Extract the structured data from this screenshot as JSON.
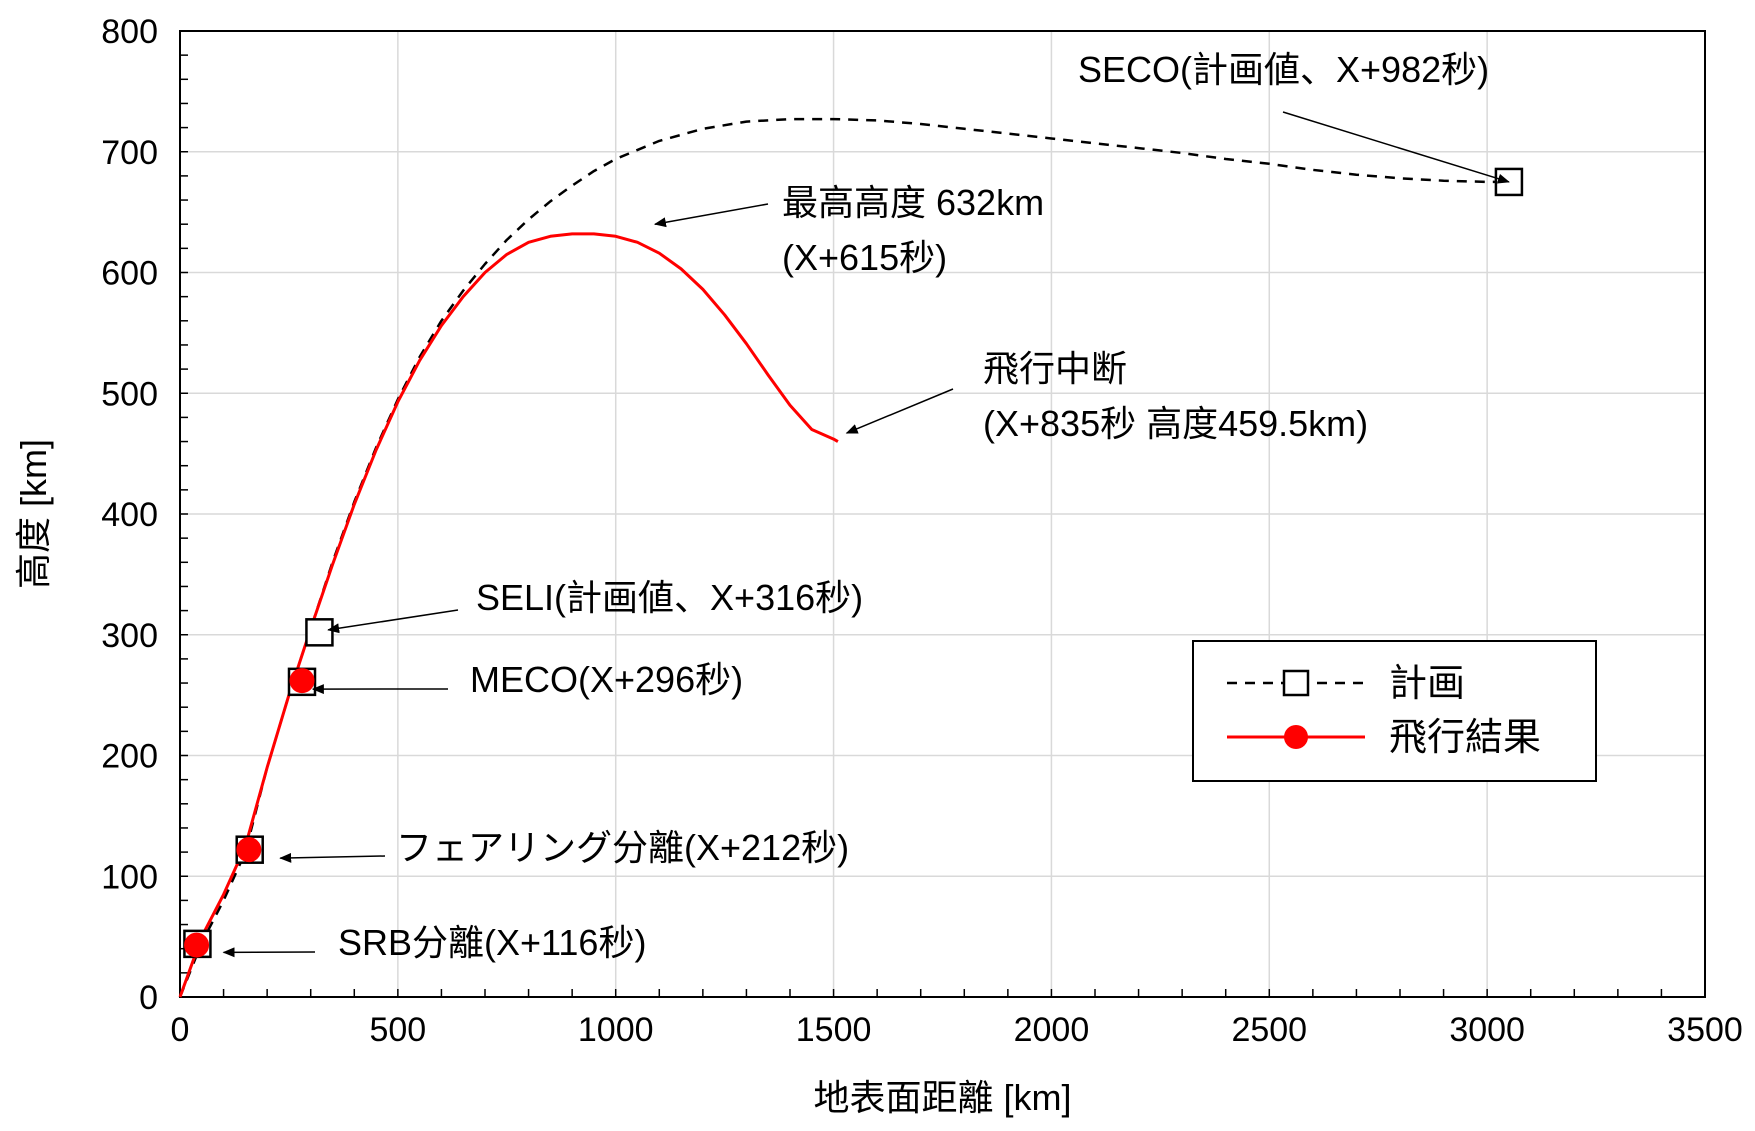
{
  "chart_data": {
    "type": "line",
    "xlabel": "地表面距離 [km]",
    "ylabel": "高度 [km]",
    "xlim": [
      0,
      3500
    ],
    "ylim": [
      0,
      800
    ],
    "grid": true,
    "x_ticks": [
      0,
      500,
      1000,
      1500,
      2000,
      2500,
      3000,
      3500
    ],
    "y_ticks": [
      0,
      100,
      200,
      300,
      400,
      500,
      600,
      700,
      800
    ],
    "x_tick_labels": [
      "0",
      "500",
      "1000",
      "1500",
      "2000",
      "2500",
      "3000",
      "3500"
    ],
    "y_tick_labels": [
      "0",
      "100",
      "200",
      "300",
      "400",
      "500",
      "600",
      "700",
      "800"
    ],
    "legend": {
      "position": "right-middle"
    },
    "series": [
      {
        "name": "計画",
        "style": "dashed",
        "color": "#000000",
        "marker": "open-square",
        "x": [
          0,
          50,
          100,
          150,
          200,
          250,
          300,
          350,
          400,
          450,
          500,
          550,
          600,
          650,
          700,
          750,
          800,
          850,
          900,
          950,
          1000,
          1100,
          1200,
          1300,
          1400,
          1500,
          1600,
          1700,
          1800,
          1900,
          2000,
          2100,
          2200,
          2300,
          2400,
          2500,
          2600,
          2700,
          2800,
          2900,
          3000,
          3050
        ],
        "y": [
          0,
          45,
          80,
          120,
          190,
          250,
          305,
          360,
          410,
          455,
          495,
          530,
          560,
          585,
          607,
          627,
          644,
          659,
          672,
          684,
          694,
          709,
          719,
          725,
          727,
          727,
          726,
          723,
          719,
          715,
          711,
          707,
          703,
          699,
          694,
          690,
          685,
          681,
          678,
          676,
          675,
          675
        ],
        "markers": [
          {
            "x": 40,
            "y": 44
          },
          {
            "x": 160,
            "y": 122
          },
          {
            "x": 280,
            "y": 261
          },
          {
            "x": 320,
            "y": 302
          },
          {
            "x": 3050,
            "y": 675
          }
        ]
      },
      {
        "name": "飛行結果",
        "style": "solid",
        "color": "#ff0000",
        "marker": "filled-circle",
        "x": [
          0,
          50,
          100,
          150,
          200,
          250,
          300,
          350,
          400,
          450,
          500,
          550,
          600,
          650,
          700,
          750,
          800,
          850,
          900,
          950,
          1000,
          1050,
          1100,
          1150,
          1200,
          1250,
          1300,
          1350,
          1400,
          1450,
          1500,
          1510
        ],
        "y": [
          0,
          50,
          85,
          125,
          190,
          250,
          305,
          358,
          408,
          453,
          493,
          527,
          556,
          580,
          600,
          615,
          625,
          630,
          632,
          632,
          630,
          625,
          616,
          603,
          586,
          565,
          541,
          515,
          490,
          470,
          462,
          460
        ],
        "markers": [
          {
            "x": 38,
            "y": 43
          },
          {
            "x": 158,
            "y": 122
          },
          {
            "x": 280,
            "y": 262
          }
        ]
      }
    ],
    "annotations": [
      {
        "label": "SECO(計画値、X+982秒)",
        "point": {
          "x": 3050,
          "y": 675
        }
      },
      {
        "label_lines": [
          "最高高度 632km",
          "(X+615秒)"
        ],
        "point": {
          "x": 1090,
          "y": 640
        }
      },
      {
        "label_lines": [
          "飛行中断",
          "(X+835秒 高度459.5km)"
        ],
        "point": {
          "x": 1530,
          "y": 467
        }
      },
      {
        "label": "SELI(計画値、X+316秒)",
        "point": {
          "x": 340,
          "y": 304
        }
      },
      {
        "label": "MECO(X+296秒)",
        "point": {
          "x": 305,
          "y": 255
        }
      },
      {
        "label": "フェアリング分離(X+212秒)",
        "point": {
          "x": 230,
          "y": 115
        }
      },
      {
        "label": "SRB分離(X+116秒)",
        "point": {
          "x": 100,
          "y": 37
        }
      }
    ]
  }
}
